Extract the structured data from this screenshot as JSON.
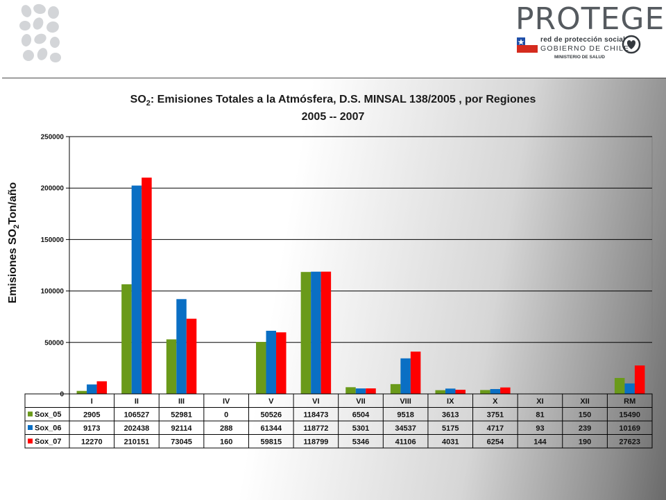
{
  "header": {
    "brand": "PROTEGE",
    "gov_line1": "red de protección social",
    "gov_line2": "GOBIERNO DE CHILE",
    "gov_line3": "MINISTERIO DE SALUD"
  },
  "chart_data": {
    "type": "bar",
    "title_prefix": "SO",
    "title_sub": "2",
    "title_main": ": Emisiones Totales a la Atmósfera,  D.S. MINSAL 138/2005 , por Regiones",
    "subtitle": "2005 -- 2007",
    "ylabel_prefix": "Emisiones SO",
    "ylabel_sub": "2",
    "ylabel_suffix": "Ton/año",
    "ylim": [
      0,
      250000
    ],
    "yticks": [
      "0",
      "50000",
      "100000",
      "150000",
      "200000",
      "250000"
    ],
    "grid": true,
    "legend_placement": "data-table",
    "categories": [
      "I",
      "II",
      "III",
      "IV",
      "V",
      "VI",
      "VII",
      "VIII",
      "IX",
      "X",
      "XI",
      "XII",
      "RM"
    ],
    "series": [
      {
        "name": "Sox_05",
        "color": "#6a9a1a",
        "values": [
          2905,
          106527,
          52981,
          0,
          50526,
          118473,
          6504,
          9518,
          3613,
          3751,
          81,
          150,
          15490
        ]
      },
      {
        "name": "Sox_06",
        "color": "#0a6fc4",
        "values": [
          9173,
          202438,
          92114,
          288,
          61344,
          118772,
          5301,
          34537,
          5175,
          4717,
          93,
          239,
          10169
        ]
      },
      {
        "name": "Sox_07",
        "color": "#ff0000",
        "values": [
          12270,
          210151,
          73045,
          160,
          59815,
          118799,
          5346,
          41106,
          4031,
          6254,
          144,
          190,
          27623
        ]
      }
    ]
  }
}
